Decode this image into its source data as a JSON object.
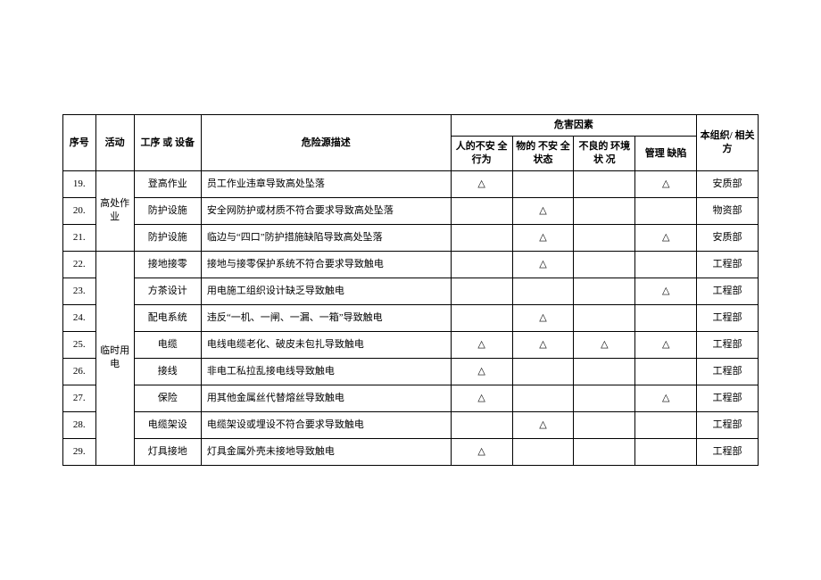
{
  "mark": "△",
  "header": {
    "seq": "序号",
    "activity": "活动",
    "process": "工序 或 设备",
    "desc": "危险源描述",
    "hazard_group": "危害因素",
    "hf": {
      "unsafe_act": "人的不安 全行为",
      "unsafe_obj": "物的 不安 全状态",
      "bad_env": "不良的 环境状 况",
      "mgmt_def": "管理 缺陷"
    },
    "org": "本组织/ 相关方"
  },
  "activities": {
    "high": "高处作业",
    "elec": "临时用电"
  },
  "rows": [
    {
      "seq": "19.",
      "proc": "登高作业",
      "desc": "员工作业违章导致高处坠落",
      "hf": [
        true,
        false,
        false,
        true
      ],
      "org": "安质部"
    },
    {
      "seq": "20.",
      "proc": "防护设施",
      "desc": "安全网防护或材质不符合要求导致高处坠落",
      "hf": [
        false,
        true,
        false,
        false
      ],
      "org": "物资部"
    },
    {
      "seq": "21.",
      "proc": "防护设施",
      "desc": "临边与“四口”防护措施缺陷导致高处坠落",
      "hf": [
        false,
        true,
        false,
        true
      ],
      "org": "安质部"
    },
    {
      "seq": "22.",
      "proc": "接地接零",
      "desc": "接地与接零保护系统不符合要求导致触电",
      "hf": [
        false,
        true,
        false,
        false
      ],
      "org": "工程部"
    },
    {
      "seq": "23.",
      "proc": "方茶设计",
      "desc": "用电施工组织设计缺乏导致触电",
      "hf": [
        false,
        false,
        false,
        true
      ],
      "org": "工程部"
    },
    {
      "seq": "24.",
      "proc": "配电系统",
      "desc": "违反“一机、一闸、一漏、一箱”导致触电",
      "hf": [
        false,
        true,
        false,
        false
      ],
      "org": "工程部"
    },
    {
      "seq": "25.",
      "proc": "电缆",
      "desc": "电线电缆老化、破皮未包扎导致触电",
      "hf": [
        true,
        true,
        true,
        true
      ],
      "org": "工程部"
    },
    {
      "seq": "26.",
      "proc": "接线",
      "desc": "非电工私拉乱接电线导致触电",
      "hf": [
        true,
        false,
        false,
        false
      ],
      "org": "工程部"
    },
    {
      "seq": "27.",
      "proc": "保险",
      "desc": "用其他金属丝代替熔丝导致触电",
      "hf": [
        true,
        false,
        false,
        true
      ],
      "org": "工程部"
    },
    {
      "seq": "28.",
      "proc": "电缆架设",
      "desc": "电缆架设或埋设不符合要求导致触电",
      "hf": [
        false,
        true,
        false,
        false
      ],
      "org": "工程部"
    },
    {
      "seq": "29.",
      "proc": "灯具接地",
      "desc": "灯具金属外壳未接地导致触电",
      "hf": [
        true,
        false,
        false,
        false
      ],
      "org": "工程部"
    }
  ]
}
